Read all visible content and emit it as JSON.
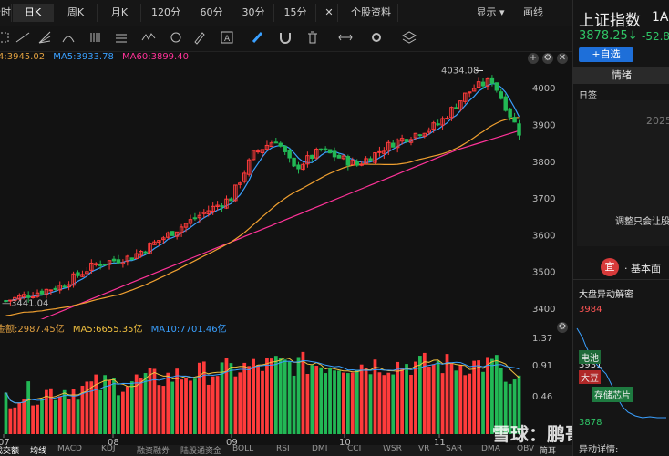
{
  "toolbar": {
    "tabs": [
      "分时",
      "日K",
      "周K",
      "月K",
      "120分",
      "60分",
      "30分",
      "15分",
      "个股资料"
    ],
    "active_tab": "日K",
    "close_symbol": "✕",
    "display_label": "显示",
    "draw_label": "画线"
  },
  "ma_legend": {
    "ma_prefix_value": "4:3945.02",
    "ma5": "MA5:3933.78",
    "ma60": "MA60:3899.40",
    "colors": {
      "prefix": "#e0a040",
      "ma5": "#3aa0ff",
      "ma60": "#ff3399"
    }
  },
  "price_axis": {
    "ticks": [
      "4000",
      "3900",
      "3800",
      "3700",
      "3600",
      "3500",
      "3400"
    ]
  },
  "annotations": {
    "high_label": "4034.08",
    "low_label": "3441.04"
  },
  "volume_legend": {
    "amount": "金额:2987.45亿",
    "ma5": "MA5:6655.35亿",
    "ma10": "MA10:7701.46亿",
    "colors": {
      "amount": "#e0a040",
      "ma5": "#f0c040",
      "ma10": "#3aa0ff"
    }
  },
  "volume_axis": {
    "ticks": [
      "1.37",
      "0.91",
      "0.46"
    ]
  },
  "date_axis": {
    "labels": [
      "07",
      "08",
      "09",
      "10",
      "11"
    ]
  },
  "bottom_tabs": {
    "items": [
      "成交额",
      "均线",
      "MACD",
      "KDJ",
      "融资融券",
      "陆股通资金",
      "BOLL",
      "RSI",
      "DMI",
      "CCI",
      "WSR",
      "VR",
      "SAR",
      "DMA",
      "OBV"
    ],
    "right_label": "简耳"
  },
  "watermark": "雪球：鹏哥投研",
  "right_panel": {
    "title": "上证指数",
    "code": "1A0",
    "price": "3878.25↓",
    "change": "-52.8",
    "follow_button": "+自选",
    "sentiment_tab": "情绪",
    "sentiment_sub": "日签",
    "year_label": "2025",
    "quote_text": "调整只会让股",
    "fundamentals_badge": "宜",
    "fundamentals_label": "· 基本面",
    "anomaly_title": "大盘异动解密",
    "anomaly_values": [
      "3984",
      "3931",
      "3878"
    ],
    "tags": [
      "电池",
      "大豆",
      "存储芯片"
    ],
    "anomaly_detail": "异动详情:"
  }
}
